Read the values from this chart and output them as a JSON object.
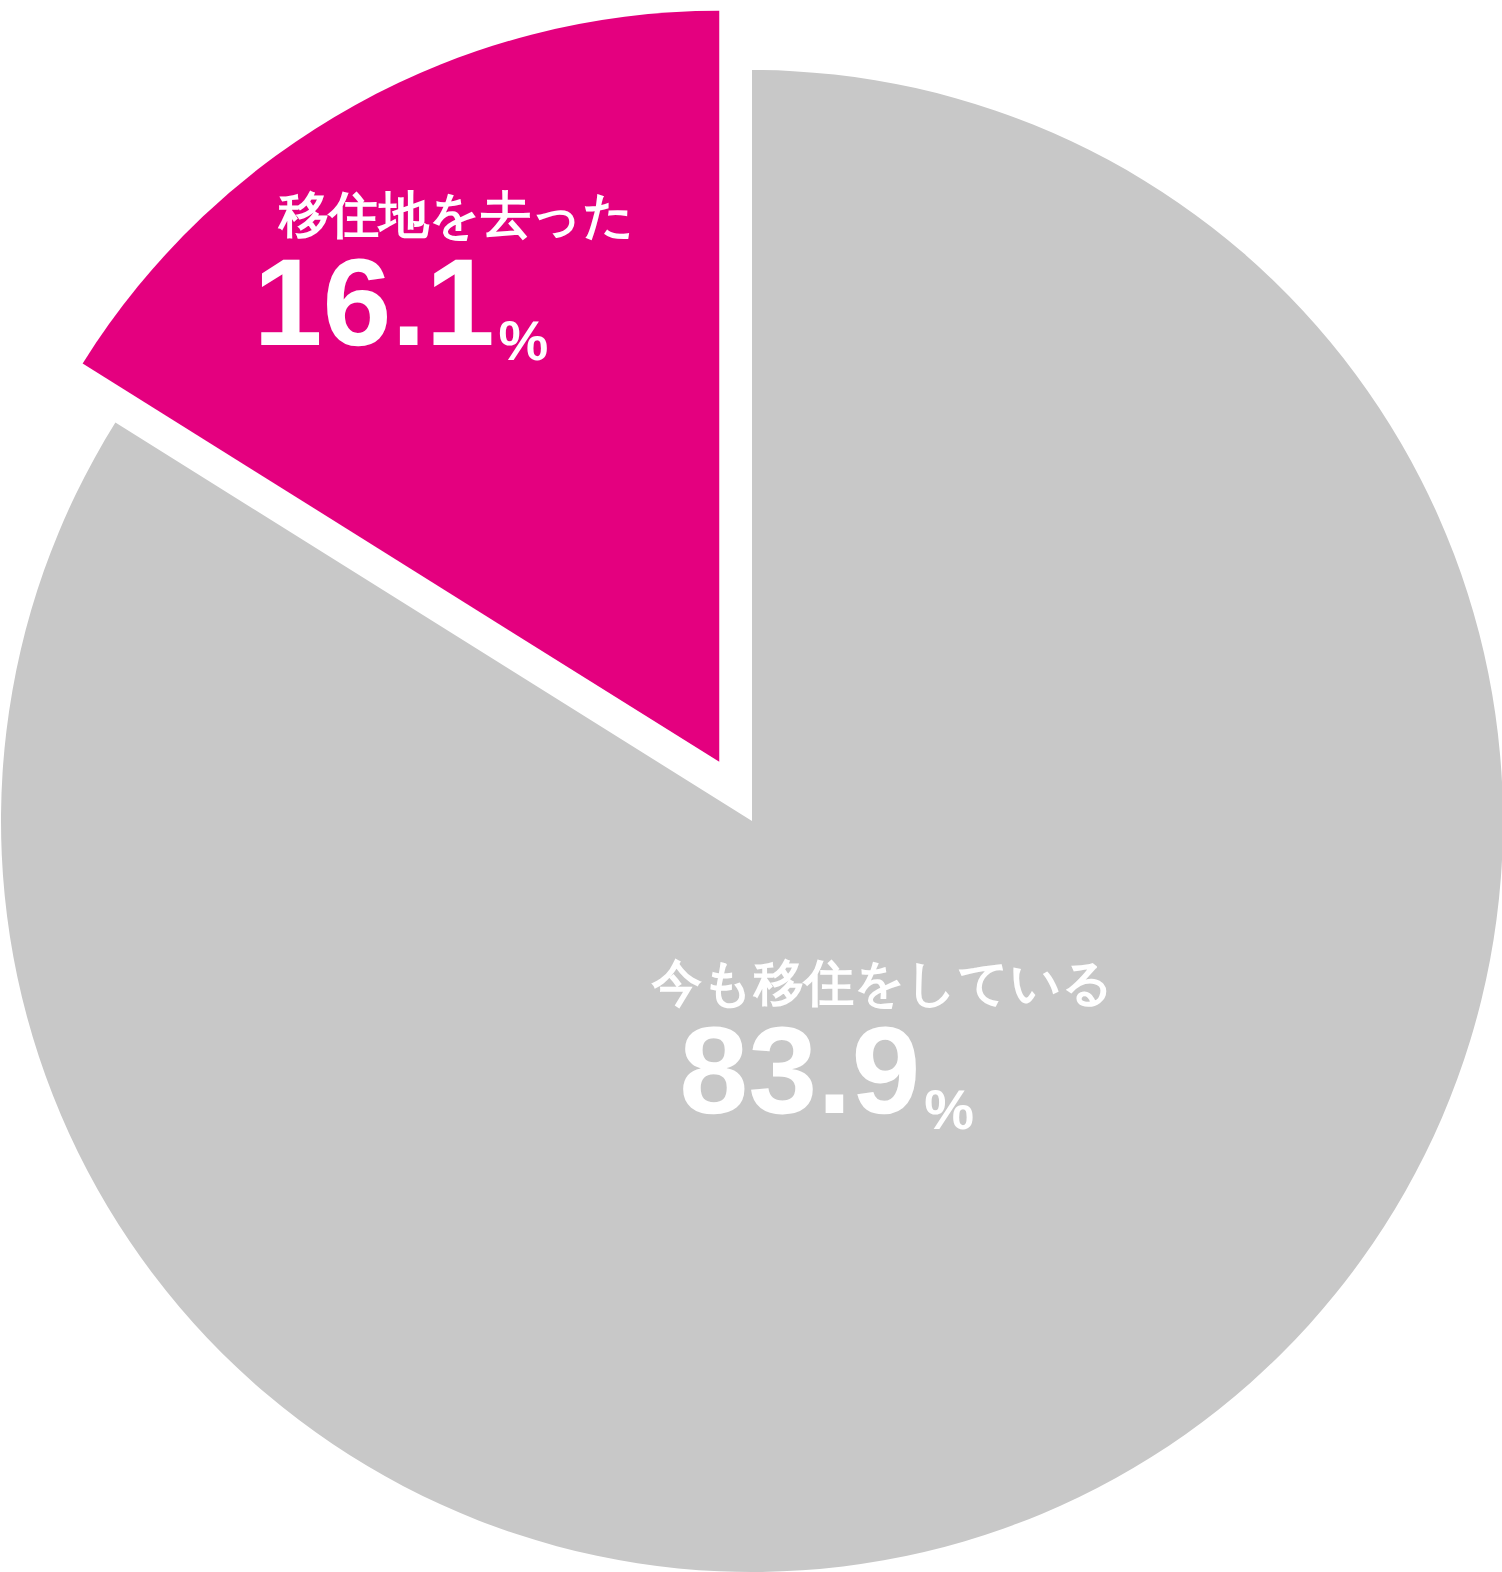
{
  "chart_data": {
    "type": "pie",
    "categories": [
      "今も移住をしている",
      "移住地を去った"
    ],
    "values": [
      83.9,
      16.1
    ],
    "colors": [
      "#c8c8c8",
      "#e4007f"
    ],
    "value_labels": [
      "83.9%",
      "16.1%"
    ]
  }
}
